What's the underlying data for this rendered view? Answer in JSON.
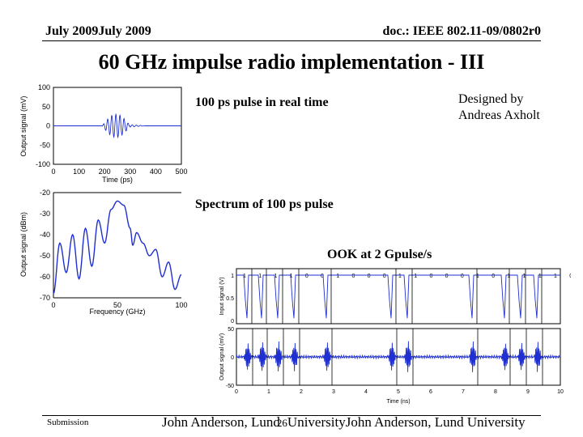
{
  "header": {
    "left": "July 2009July 2009",
    "right": "doc.: IEEE 802.11-09/0802r0"
  },
  "slide": {
    "title": "60 GHz impulse radio implementation - III",
    "caption_pulse": "100 ps pulse in real time",
    "designed_by": [
      "Designed by",
      "Andreas Axholt"
    ],
    "caption_spectrum": "Spectrum of 100 ps pulse",
    "caption_ook": "OOK at 2 Gpulse/s"
  },
  "footer": {
    "left": "Submission",
    "center_name": "John Anderson, Lund",
    "page_number": "26",
    "center_rest": "University",
    "right": "John Anderson, Lund University"
  },
  "colors": {
    "trace": "#1f2fd0",
    "axis": "#000000"
  },
  "chart_data": [
    {
      "type": "line",
      "title": "",
      "xlabel": "Time (ps)",
      "ylabel": "Output signal (mV)",
      "xlim": [
        0,
        500
      ],
      "ylim": [
        -100,
        100
      ],
      "x_ticks": [
        "0",
        "100",
        "200",
        "300",
        "400",
        "500"
      ],
      "y_ticks": [
        "100",
        "50",
        "0",
        "-50",
        "-100"
      ],
      "series": [
        {
          "x": [
            0,
            180,
            190,
            200,
            210,
            220,
            230,
            240,
            250,
            260,
            270,
            280,
            290,
            300,
            320,
            350,
            400,
            500
          ],
          "y": [
            0,
            0,
            4,
            -12,
            20,
            -28,
            32,
            -30,
            28,
            -24,
            18,
            -10,
            6,
            -3,
            2,
            1,
            0,
            0
          ]
        }
      ]
    },
    {
      "type": "line",
      "title": "",
      "xlabel": "Frequency (GHz)",
      "ylabel": "Output signal (dBm)",
      "xlim": [
        0,
        100
      ],
      "ylim": [
        -70,
        -20
      ],
      "x_ticks": [
        "0",
        "50",
        "100"
      ],
      "y_ticks": [
        "-20",
        "-30",
        "-40",
        "-50",
        "-60",
        "-70"
      ],
      "series": [
        {
          "x": [
            0,
            5,
            10,
            15,
            20,
            25,
            30,
            35,
            40,
            45,
            50,
            55,
            60,
            62,
            65,
            70,
            75,
            80,
            85,
            90,
            95,
            100
          ],
          "y": [
            -68,
            -44,
            -58,
            -40,
            -61,
            -37,
            -55,
            -33,
            -44,
            -28,
            -24,
            -26,
            -37,
            -45,
            -39,
            -44,
            -50,
            -47,
            -60,
            -53,
            -66,
            -59
          ]
        }
      ]
    },
    {
      "type": "line",
      "title": "",
      "xlabel": "Time (ns)",
      "ylabel": "Input signal (V)",
      "xlim": [
        0,
        10
      ],
      "ylim": [
        0,
        1
      ],
      "x_ticks": [
        "0",
        "1",
        "2",
        "3",
        "4",
        "5",
        "6",
        "7",
        "8",
        "9",
        "10"
      ],
      "y_ticks": [
        "1",
        "0.5",
        "0"
      ],
      "bit_labels": [
        "1",
        "1",
        "1",
        "1",
        "0",
        "0",
        "1",
        "0",
        "0",
        "0",
        "1",
        "1",
        "0",
        "0",
        "0",
        "1",
        "0",
        "1",
        "1",
        "1",
        "1",
        "0"
      ],
      "series": [
        {
          "x": [
            0.3,
            0.75,
            1.25,
            1.75,
            2.75,
            4.75,
            5.25,
            7.25,
            8.25,
            8.75,
            9.25
          ],
          "y": [
            0.45,
            0.45,
            0.45,
            0.45,
            0.45,
            0.45,
            0.45,
            0.45,
            0.45,
            0.45,
            0.45
          ]
        }
      ]
    },
    {
      "type": "line",
      "title": "",
      "xlabel": "Time (ns)",
      "ylabel": "Output signal (mV)",
      "xlim": [
        0,
        10
      ],
      "ylim": [
        -50,
        50
      ],
      "x_ticks": [
        "0",
        "1",
        "2",
        "3",
        "4",
        "5",
        "6",
        "7",
        "8",
        "9",
        "10"
      ],
      "y_ticks": [
        "50",
        "0",
        "-50"
      ],
      "series": [
        {
          "x": [
            0.35,
            0.8,
            1.3,
            1.8,
            2.8,
            4.8,
            5.3,
            7.3,
            8.3,
            8.8,
            9.3
          ],
          "y": [
            28,
            28,
            28,
            28,
            28,
            28,
            28,
            28,
            28,
            28,
            28
          ]
        }
      ]
    }
  ]
}
